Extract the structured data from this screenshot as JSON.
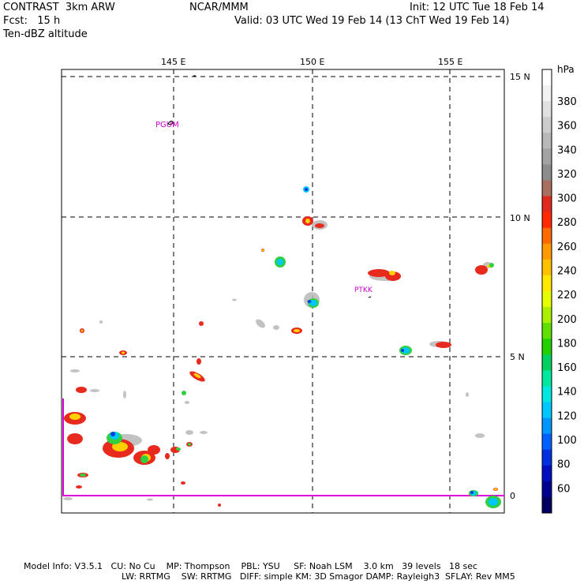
{
  "header": {
    "line1_left": "CONTRAST  3km ARW",
    "line1_center": "NCAR/MMM",
    "line1_right": "Init: 12 UTC Tue 18 Feb 14",
    "line2_left": "Fcst:   15 h",
    "line2_right": "Valid: 03 UTC Wed 19 Feb 14 (13 ChT Wed 19 Feb 14)",
    "line3_left": "Ten-dBZ altitude"
  },
  "map": {
    "lon_labels": [
      "145 E",
      "150 E",
      "155 E"
    ],
    "lat_labels": [
      "15 N",
      "10 N",
      "5 N",
      "0"
    ],
    "stations": [
      {
        "id": "PGUM",
        "label": "PGUM"
      },
      {
        "id": "PTKK",
        "label": "PTKK"
      }
    ],
    "colors": {
      "grid": "#000000",
      "station": "#cc00cc",
      "domain": "#dd00dd"
    }
  },
  "colorbar": {
    "unit": "hPa",
    "labels": [
      "380",
      "360",
      "340",
      "320",
      "300",
      "280",
      "260",
      "240",
      "220",
      "200",
      "180",
      "160",
      "140",
      "120",
      "100",
      "80",
      "60"
    ],
    "colors": [
      "#ffffff",
      "#f2f2f2",
      "#e0e0e0",
      "#cccccc",
      "#b8b8b8",
      "#a3a3a3",
      "#8c8c8c",
      "#a87060",
      "#e02a1e",
      "#ff2a00",
      "#ff6a00",
      "#ff9a00",
      "#ffc000",
      "#ffe800",
      "#e6ff00",
      "#aaf000",
      "#60e000",
      "#22d000",
      "#00d060",
      "#00e8a0",
      "#00e8e0",
      "#00c8ff",
      "#0096ff",
      "#0060ff",
      "#0030e0",
      "#0010c0",
      "#000090",
      "#000060"
    ]
  },
  "footer": {
    "line1": "Model Info: V3.5.1   CU: No Cu    MP: Thompson    PBL: YSU     SF: Noah LSM    3.0 km   39 levels   18 sec",
    "line2": "LW: RRTMG    SW: RRTMG   DIFF: simple KM: 3D Smagor DAMP: Rayleigh3  SFLAY: Rev MM5"
  }
}
